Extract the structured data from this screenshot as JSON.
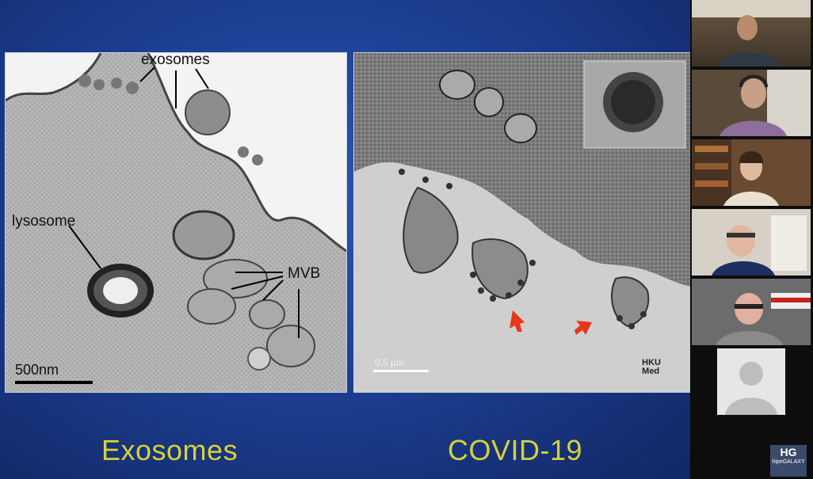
{
  "slide": {
    "left_labels": {
      "exosomes": "exosomes",
      "lysosome": "lysosome",
      "mvb": "MVB",
      "scale": "500nm"
    },
    "right_labels": {
      "scale": "0.5 µm",
      "logo_line1": "HKU",
      "logo_line2": "Med"
    },
    "captions": {
      "left": "Exosomes",
      "right": "COVID-19"
    }
  },
  "participants": [
    {
      "name": "participant-1"
    },
    {
      "name": "participant-2"
    },
    {
      "name": "participant-3"
    },
    {
      "name": "participant-4"
    },
    {
      "name": "participant-5"
    },
    {
      "name": "participant-6-avatar"
    }
  ],
  "watermark": {
    "logo": "HG",
    "text": "hipeGALAXY"
  },
  "colors": {
    "caption": "#d7d13a",
    "arrow": "#e8361b",
    "slide_bg": "#1d3f93"
  }
}
